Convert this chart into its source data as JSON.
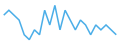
{
  "x": [
    0,
    1,
    2,
    3,
    4,
    5,
    6,
    7,
    8,
    9,
    10,
    11,
    12,
    13,
    14,
    15,
    16,
    17,
    18,
    19,
    20,
    21,
    22
  ],
  "y": [
    6,
    7,
    6,
    5,
    2,
    1,
    3,
    2,
    7,
    4,
    8,
    3,
    7,
    5,
    3,
    5,
    4,
    2,
    4,
    3,
    4,
    3,
    2
  ],
  "line_color": "#4baee8",
  "linewidth": 1.1,
  "background_color": "#ffffff",
  "ylim": [
    0,
    9
  ],
  "xlim": [
    -0.5,
    22.5
  ]
}
